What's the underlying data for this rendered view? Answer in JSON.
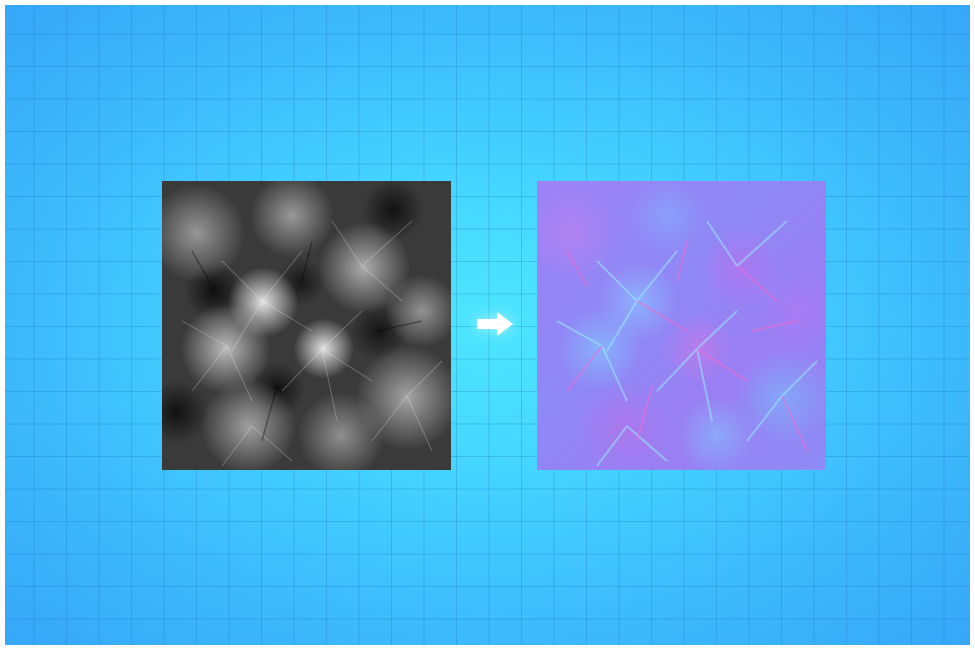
{
  "scene": {
    "background_color": "#45d6ff",
    "grid_color": "#1e6ec8",
    "items": [
      {
        "name": "heightmap-image",
        "kind": "image",
        "description_colors": [
          "#000000",
          "#ffffff"
        ]
      },
      {
        "name": "arrow-right-icon",
        "kind": "icon",
        "color": "#ffffff"
      },
      {
        "name": "normal-map-image",
        "kind": "image",
        "description_colors": [
          "#8a7cf2",
          "#7fc0ff",
          "#c67ae8"
        ]
      }
    ]
  }
}
